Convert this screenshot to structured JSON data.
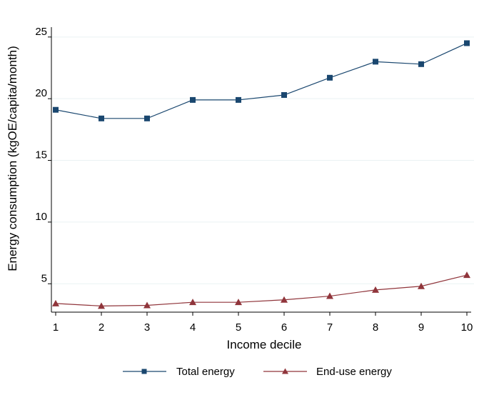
{
  "chart_data": {
    "type": "line",
    "xlabel": "Income decile",
    "ylabel": "Energy consumption (kgOE/capita/month)",
    "x": [
      1,
      2,
      3,
      4,
      5,
      6,
      7,
      8,
      9,
      10
    ],
    "xticks": [
      "1",
      "2",
      "3",
      "4",
      "5",
      "6",
      "7",
      "8",
      "9",
      "10"
    ],
    "yticks": [
      "5",
      "10",
      "15",
      "20",
      "25"
    ],
    "ytick_values": [
      5,
      10,
      15,
      20,
      25
    ],
    "xlim": [
      1,
      10
    ],
    "ylim": [
      2.7,
      25.8
    ],
    "grid": "horizontal",
    "legend_position": "bottom",
    "series": [
      {
        "name": "Total energy",
        "color": "#1a476f",
        "marker": "square",
        "values": [
          19.1,
          18.4,
          18.4,
          19.9,
          19.9,
          20.3,
          21.7,
          23.0,
          22.8,
          24.5
        ]
      },
      {
        "name": "End-use energy",
        "color": "#90353b",
        "marker": "triangle",
        "values": [
          3.4,
          3.2,
          3.25,
          3.5,
          3.5,
          3.7,
          4.0,
          4.5,
          4.8,
          5.7
        ]
      }
    ]
  }
}
